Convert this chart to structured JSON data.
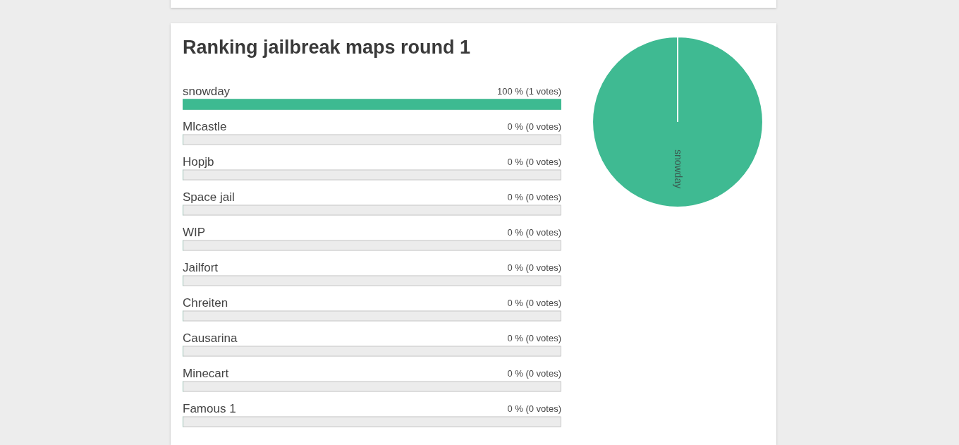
{
  "chart_data": [
    {
      "type": "bar",
      "orientation": "horizontal",
      "title": "Ranking jailbreak maps round 1",
      "categories": [
        "snowday",
        "Mlcastle",
        "Hopjb",
        "Space jail",
        "WIP",
        "Jailfort",
        "Chreiten",
        "Causarina",
        "Minecart",
        "Famous 1"
      ],
      "values": [
        100,
        0,
        0,
        0,
        0,
        0,
        0,
        0,
        0,
        0
      ],
      "value_labels": [
        "100 % (1 votes)",
        "0 % (0 votes)",
        "0 % (0 votes)",
        "0 % (0 votes)",
        "0 % (0 votes)",
        "0 % (0 votes)",
        "0 % (0 votes)",
        "0 % (0 votes)",
        "0 % (0 votes)",
        "0 % (0 votes)"
      ],
      "color": "#3dba91",
      "xlim": [
        0,
        100
      ],
      "legend": false
    },
    {
      "type": "pie",
      "categories": [
        "snowday"
      ],
      "values": [
        100
      ],
      "colors": [
        "#3fba92"
      ],
      "legend": false
    }
  ]
}
